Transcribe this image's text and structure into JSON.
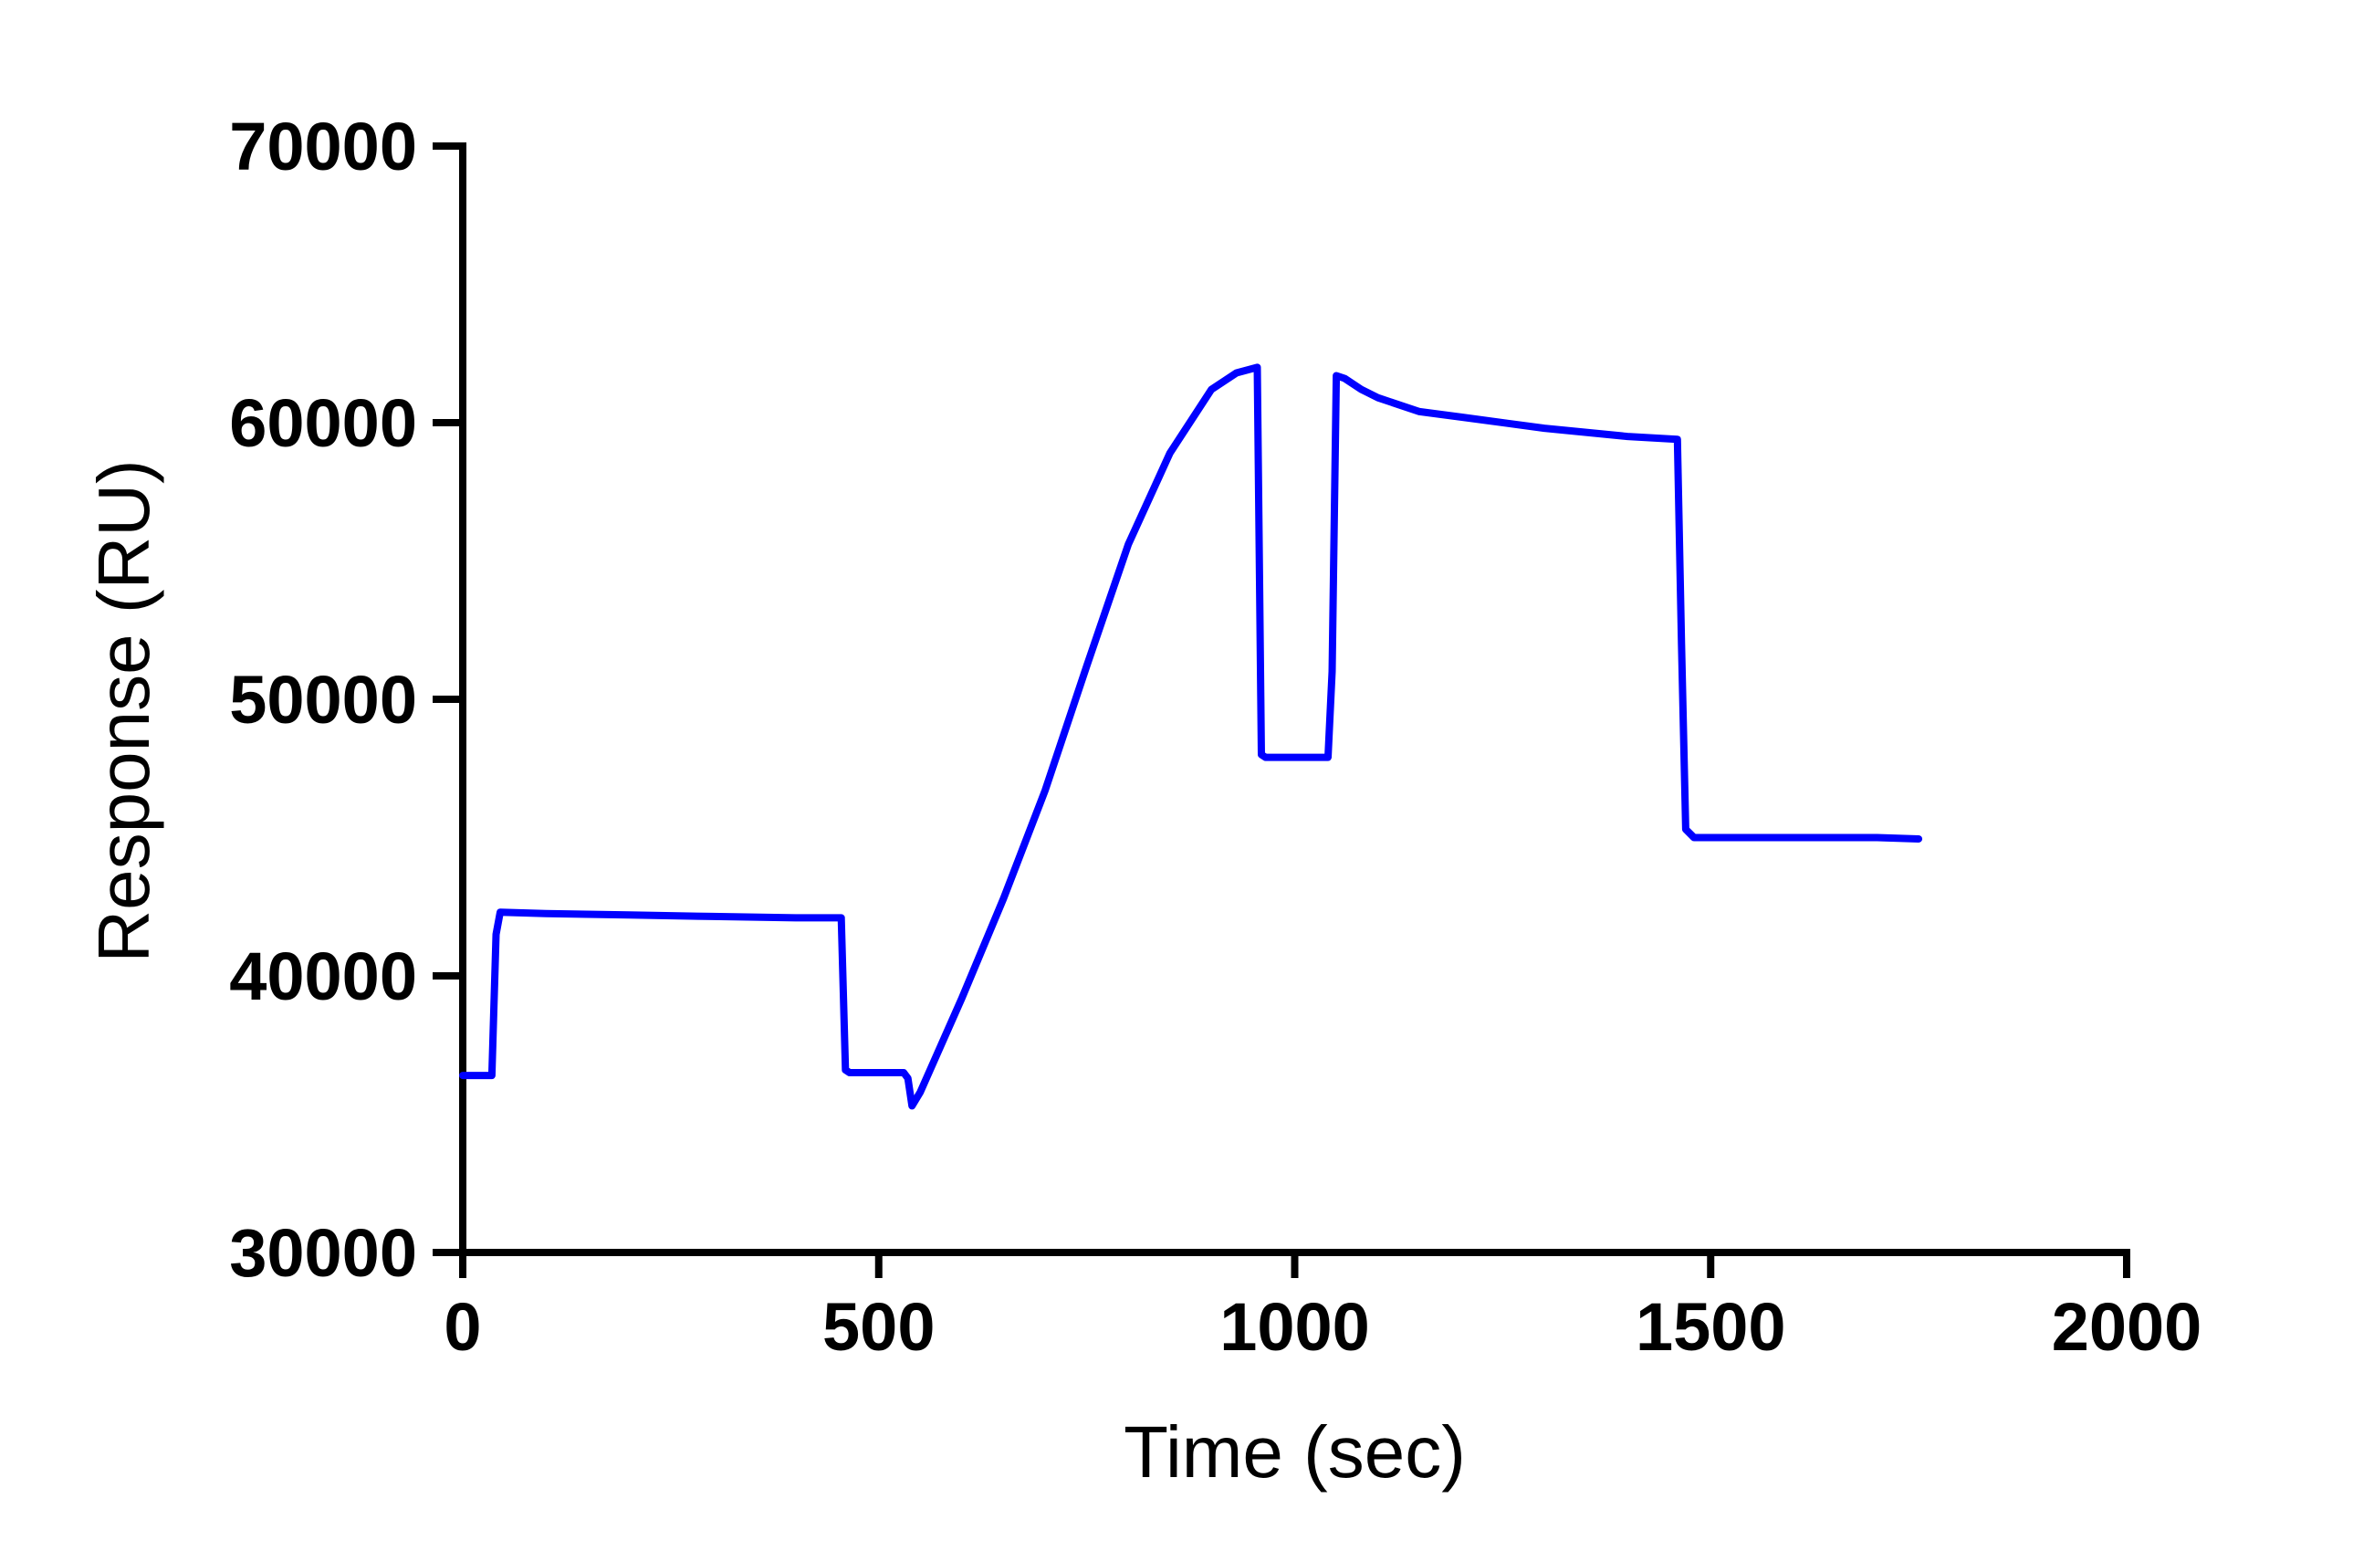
{
  "chart_data": {
    "type": "line",
    "title": "",
    "xlabel": "Time (sec)",
    "ylabel": "Response (RU)",
    "xlim": [
      0,
      2000
    ],
    "ylim": [
      30000,
      70000
    ],
    "x_ticks": [
      0,
      500,
      1000,
      1500,
      2000
    ],
    "y_ticks": [
      30000,
      40000,
      50000,
      60000,
      70000
    ],
    "x_tick_labels": [
      "0",
      "500",
      "1000",
      "1500",
      "2000"
    ],
    "y_tick_labels": [
      "30000",
      "40000",
      "50000",
      "60000",
      "70000"
    ],
    "grid": false,
    "legend": "none",
    "series_color": "#0000ff",
    "series": [
      {
        "x": [
          0,
          35,
          40,
          45,
          100,
          200,
          300,
          400,
          455,
          460,
          465,
          530,
          535,
          540,
          550,
          600,
          650,
          700,
          750,
          800,
          850,
          900,
          930,
          955,
          960,
          965,
          1000,
          1040,
          1045,
          1050,
          1060,
          1080,
          1100,
          1150,
          1200,
          1300,
          1400,
          1460,
          1465,
          1470,
          1480,
          1500,
          1600,
          1700,
          1750
        ],
        "y": [
          36400,
          36400,
          41500,
          42300,
          42250,
          42200,
          42150,
          42100,
          42100,
          36600,
          36500,
          36500,
          36300,
          35300,
          35800,
          39200,
          42800,
          46700,
          51200,
          55600,
          58900,
          61200,
          61800,
          62000,
          48000,
          47900,
          47900,
          47900,
          51000,
          61700,
          61600,
          61200,
          60900,
          60400,
          60200,
          59800,
          59500,
          59400,
          52000,
          45300,
          45000,
          45000,
          45000,
          45000,
          44950
        ]
      }
    ]
  }
}
